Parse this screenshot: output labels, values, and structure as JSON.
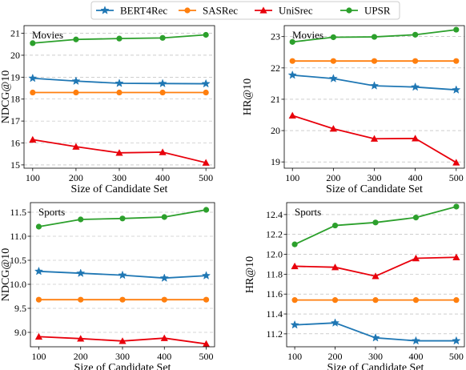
{
  "legend": [
    {
      "name": "BERT4Rec",
      "color": "#1f77b4",
      "marker": "star"
    },
    {
      "name": "SASRec",
      "color": "#ff7f0e",
      "marker": "circle"
    },
    {
      "name": "UniSrec",
      "color": "#e8000b",
      "marker": "triangle"
    },
    {
      "name": "UPSR",
      "color": "#2ca02c",
      "marker": "circle"
    }
  ],
  "chart_data": [
    {
      "type": "line",
      "panel_label": "Movies",
      "xlabel": "Size of Candidate Set",
      "ylabel": "NDCG@10",
      "x": [
        100,
        200,
        300,
        400,
        500
      ],
      "ylim": [
        14.85,
        21.35
      ],
      "yticks": [
        15,
        16,
        17,
        18,
        19,
        20,
        21
      ],
      "grid": true,
      "series": [
        {
          "name": "BERT4Rec",
          "values": [
            18.95,
            18.82,
            18.72,
            18.71,
            18.7
          ]
        },
        {
          "name": "SASRec",
          "values": [
            18.3,
            18.3,
            18.3,
            18.3,
            18.3
          ]
        },
        {
          "name": "UniSrec",
          "values": [
            16.15,
            15.83,
            15.55,
            15.58,
            15.1
          ]
        },
        {
          "name": "UPSR",
          "values": [
            20.55,
            20.72,
            20.76,
            20.79,
            20.93
          ]
        }
      ]
    },
    {
      "type": "line",
      "panel_label": "Movies",
      "xlabel": "Size of Candidate Set",
      "ylabel": "HR@10",
      "x": [
        100,
        200,
        300,
        400,
        500
      ],
      "ylim": [
        18.8,
        23.35
      ],
      "yticks": [
        19,
        20,
        21,
        22,
        23
      ],
      "grid": true,
      "series": [
        {
          "name": "BERT4Rec",
          "values": [
            21.77,
            21.66,
            21.43,
            21.39,
            21.3
          ]
        },
        {
          "name": "SASRec",
          "values": [
            22.22,
            22.22,
            22.22,
            22.22,
            22.22
          ]
        },
        {
          "name": "UniSrec",
          "values": [
            20.48,
            20.06,
            19.74,
            19.75,
            18.98
          ]
        },
        {
          "name": "UPSR",
          "values": [
            22.83,
            22.98,
            22.99,
            23.06,
            23.22
          ]
        }
      ]
    },
    {
      "type": "line",
      "panel_label": "Sports",
      "xlabel": "Size of Candidate Set",
      "ylabel": "NDCG@10",
      "x": [
        100,
        200,
        300,
        400,
        500
      ],
      "ylim": [
        8.7,
        11.7
      ],
      "yticks": [
        9.0,
        9.5,
        10.0,
        10.5,
        11.0,
        11.5
      ],
      "grid": true,
      "series": [
        {
          "name": "BERT4Rec",
          "values": [
            10.27,
            10.23,
            10.19,
            10.13,
            10.18
          ]
        },
        {
          "name": "SASRec",
          "values": [
            9.68,
            9.68,
            9.68,
            9.68,
            9.68
          ]
        },
        {
          "name": "UniSrec",
          "values": [
            8.91,
            8.87,
            8.82,
            8.88,
            8.76
          ]
        },
        {
          "name": "UPSR",
          "values": [
            11.2,
            11.35,
            11.37,
            11.4,
            11.55
          ]
        }
      ]
    },
    {
      "type": "line",
      "panel_label": "Sports",
      "xlabel": "Size of Candidate Set",
      "ylabel": "HR@10",
      "x": [
        100,
        200,
        300,
        400,
        500
      ],
      "ylim": [
        11.07,
        12.52
      ],
      "yticks": [
        11.2,
        11.4,
        11.6,
        11.8,
        12.0,
        12.2,
        12.4
      ],
      "grid": true,
      "series": [
        {
          "name": "BERT4Rec",
          "values": [
            11.29,
            11.31,
            11.16,
            11.13,
            11.13
          ]
        },
        {
          "name": "SASRec",
          "values": [
            11.54,
            11.54,
            11.54,
            11.54,
            11.54
          ]
        },
        {
          "name": "UniSrec",
          "values": [
            11.88,
            11.87,
            11.78,
            11.96,
            11.97
          ]
        },
        {
          "name": "UPSR",
          "values": [
            12.1,
            12.29,
            12.32,
            12.37,
            12.48
          ]
        }
      ]
    }
  ]
}
